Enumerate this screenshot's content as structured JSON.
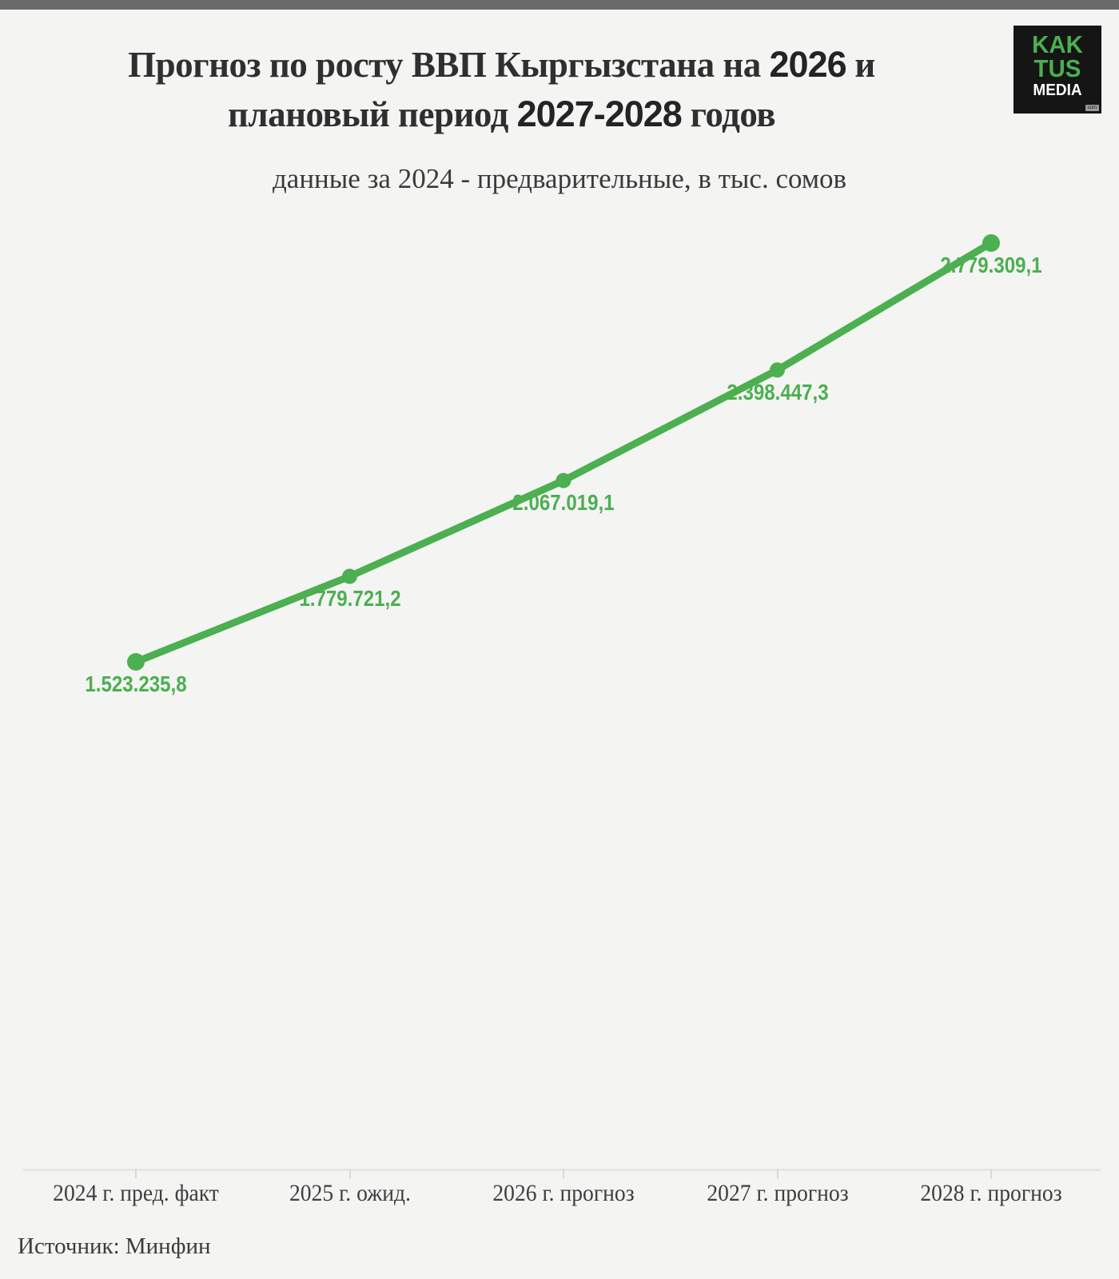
{
  "page": {
    "title": {
      "line1_pre": "Прогноз по росту ВВП Кыргызстана на ",
      "line1_num": "2026",
      "line1_post": " и",
      "line2_pre": "плановый период ",
      "line2_num": "2027-2028",
      "line2_post": " годов"
    },
    "subtitle": "данные за 2024 - предварительные, в тыс. сомов",
    "source": "Источник: Минфин",
    "logo": {
      "line1": "KAK",
      "line2": "TUS",
      "line3": "MEDIA",
      "badge": "com"
    }
  },
  "colors": {
    "accent_green": "#4caf50",
    "background": "#f4f4f3",
    "top_bar": "#6a6a6a",
    "logo_background": "#151515",
    "axis_line": "#e6e6e5",
    "text_dark": "#2f2f2f"
  },
  "chart_data": {
    "type": "line",
    "title": "Прогноз по росту ВВП Кыргызстана на 2026 и плановый период 2027-2028 годов",
    "subtitle": "данные за 2024 - предварительные, в тыс. сомов",
    "unit": "тыс. сомов",
    "categories": [
      "2024 г. пред. факт",
      "2025 г. ожид.",
      "2026 г. прогноз",
      "2027 г. прогноз",
      "2028 г. прогноз"
    ],
    "values": [
      1523235.8,
      1779721.2,
      2067019.1,
      2398447.3,
      2779309.1
    ],
    "value_labels": [
      "1.523.235,8",
      "1.779.721,2",
      "2.067.019,1",
      "2.398.447,3",
      "2.779.309,1"
    ],
    "series_color": "#4caf50",
    "grid": false,
    "legend": "none",
    "ylim": [
      0,
      2900000
    ],
    "source": "Минфин"
  }
}
